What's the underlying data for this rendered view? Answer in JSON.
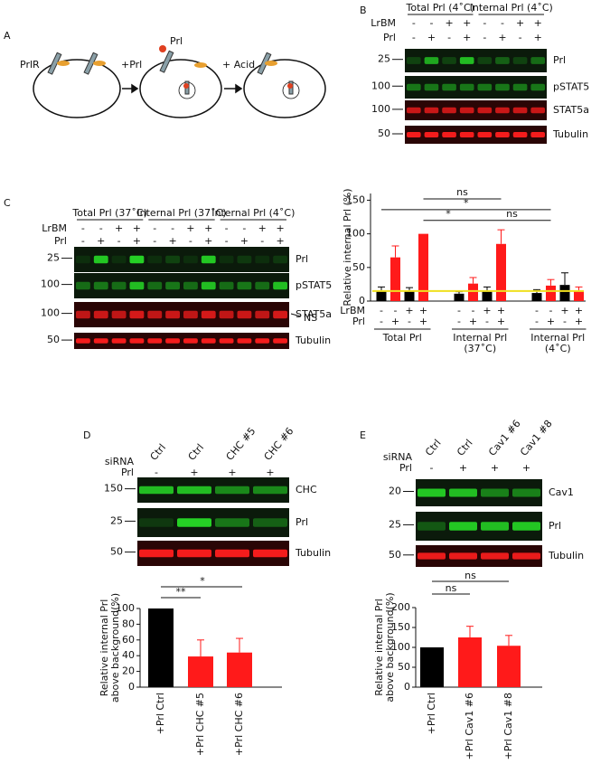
{
  "panels": {
    "A": {
      "letter": "A",
      "receptor": "PrlR",
      "step1": "+Prl",
      "ligand": "Prl",
      "step2": "+ Acid"
    },
    "B": {
      "letter": "B",
      "groups": [
        "Total Prl (4˚C)",
        "Internal Prl (4˚C)"
      ],
      "row_labels": [
        "LrBM",
        "Prl"
      ],
      "lrbm": [
        "-",
        "-",
        "+",
        "+",
        "-",
        "-",
        "+",
        "+"
      ],
      "prl": [
        "-",
        "+",
        "-",
        "+",
        "-",
        "+",
        "-",
        "+"
      ],
      "markers": [
        25,
        100,
        100,
        50
      ],
      "blots": [
        "Prl",
        "pSTAT5",
        "STAT5a",
        "Tubulin"
      ]
    },
    "C": {
      "letter": "C",
      "groups": [
        "Total Prl (37˚C)",
        "Internal Prl (37˚C)",
        "Internal Prl (4˚C)"
      ],
      "row_labels": [
        "LrBM",
        "Prl"
      ],
      "lrbm": [
        "-",
        "-",
        "+",
        "+",
        "-",
        "-",
        "+",
        "+",
        "-",
        "-",
        "+",
        "+"
      ],
      "prl": [
        "-",
        "+",
        "-",
        "+",
        "-",
        "+",
        "-",
        "+",
        "-",
        "+",
        "-",
        "+"
      ],
      "markers": [
        25,
        100,
        100,
        50
      ],
      "blots": [
        "Prl",
        "pSTAT5",
        "STAT5a",
        "Tubulin"
      ],
      "nonspecific": "NS"
    },
    "D": {
      "letter": "D",
      "row_labels": [
        "siRNA",
        "Prl"
      ],
      "lanes": [
        "Ctrl",
        "Ctrl",
        "CHC #5",
        "CHC #6"
      ],
      "prl": [
        "-",
        "+",
        "+",
        "+"
      ],
      "markers": [
        150,
        25,
        50
      ],
      "blots": [
        "CHC",
        "Prl",
        "Tubulin"
      ]
    },
    "E": {
      "letter": "E",
      "row_labels": [
        "siRNA",
        "Prl"
      ],
      "lanes": [
        "Ctrl",
        "Ctrl",
        "Cav1 #6",
        "Cav1 #8"
      ],
      "prl": [
        "-",
        "+",
        "+",
        "+"
      ],
      "markers": [
        20,
        25,
        50
      ],
      "blots": [
        "Cav1",
        "Prl",
        "Tubulin"
      ]
    }
  },
  "chart_data": [
    {
      "type": "bar",
      "ylabel": [
        "Relative internal Prl (%)"
      ],
      "ylim": [
        0,
        160
      ],
      "yticks": [
        0,
        50,
        100,
        150
      ],
      "values": [
        15,
        65,
        15,
        100,
        11,
        26,
        14,
        85,
        12,
        23,
        24,
        16
      ],
      "errors": [
        6,
        17,
        5,
        0,
        3,
        9,
        7,
        21,
        5,
        9,
        18,
        5
      ],
      "colors": [
        "#000000",
        "#ff1a1a",
        "#000000",
        "#ff1a1a",
        "#000000",
        "#ff1a1a",
        "#000000",
        "#ff1a1a",
        "#000000",
        "#ff1a1a",
        "#000000",
        "#ff1a1a"
      ],
      "reference_line": {
        "value": 15,
        "color": "#f0e020"
      },
      "row_labels": [
        "LrBM",
        "Prl"
      ],
      "lrbm": [
        "-",
        "-",
        "+",
        "+",
        "-",
        "-",
        "+",
        "+",
        "-",
        "-",
        "+",
        "+"
      ],
      "prl": [
        "-",
        "+",
        "-",
        "+",
        "-",
        "+",
        "-",
        "+",
        "-",
        "+",
        "-",
        "+"
      ],
      "groups": [
        [
          "Total Prl"
        ],
        [
          "Internal Prl",
          "(37˚C)"
        ],
        [
          "Internal Prl",
          "(4˚C)"
        ]
      ],
      "significance": [
        "ns",
        "*",
        "*",
        "ns"
      ]
    },
    {
      "type": "bar",
      "ylabel": [
        "Relative internal Prl",
        "above background(%)"
      ],
      "ylim": [
        0,
        100
      ],
      "yticks": [
        0,
        20,
        40,
        60,
        80,
        100
      ],
      "categories": [
        "+Prl Ctrl",
        "+Prl CHC #5",
        "+Prl CHC #6"
      ],
      "values": [
        100,
        39,
        44
      ],
      "errors": [
        0,
        21,
        18
      ],
      "colors": [
        "#000000",
        "#ff1a1a",
        "#ff1a1a"
      ],
      "significance": [
        "**",
        "*"
      ]
    },
    {
      "type": "bar",
      "ylabel": [
        "Relative internal Prl",
        "above background(%)"
      ],
      "ylim": [
        0,
        200
      ],
      "yticks": [
        0,
        50,
        100,
        150,
        200
      ],
      "categories": [
        "+Prl Ctrl",
        "+Prl Cav1 #6",
        "+Prl Cav1 #8"
      ],
      "values": [
        100,
        125,
        104
      ],
      "errors": [
        0,
        28,
        26
      ],
      "colors": [
        "#000000",
        "#ff1a1a",
        "#ff1a1a"
      ],
      "significance": [
        "ns",
        "ns"
      ]
    }
  ]
}
